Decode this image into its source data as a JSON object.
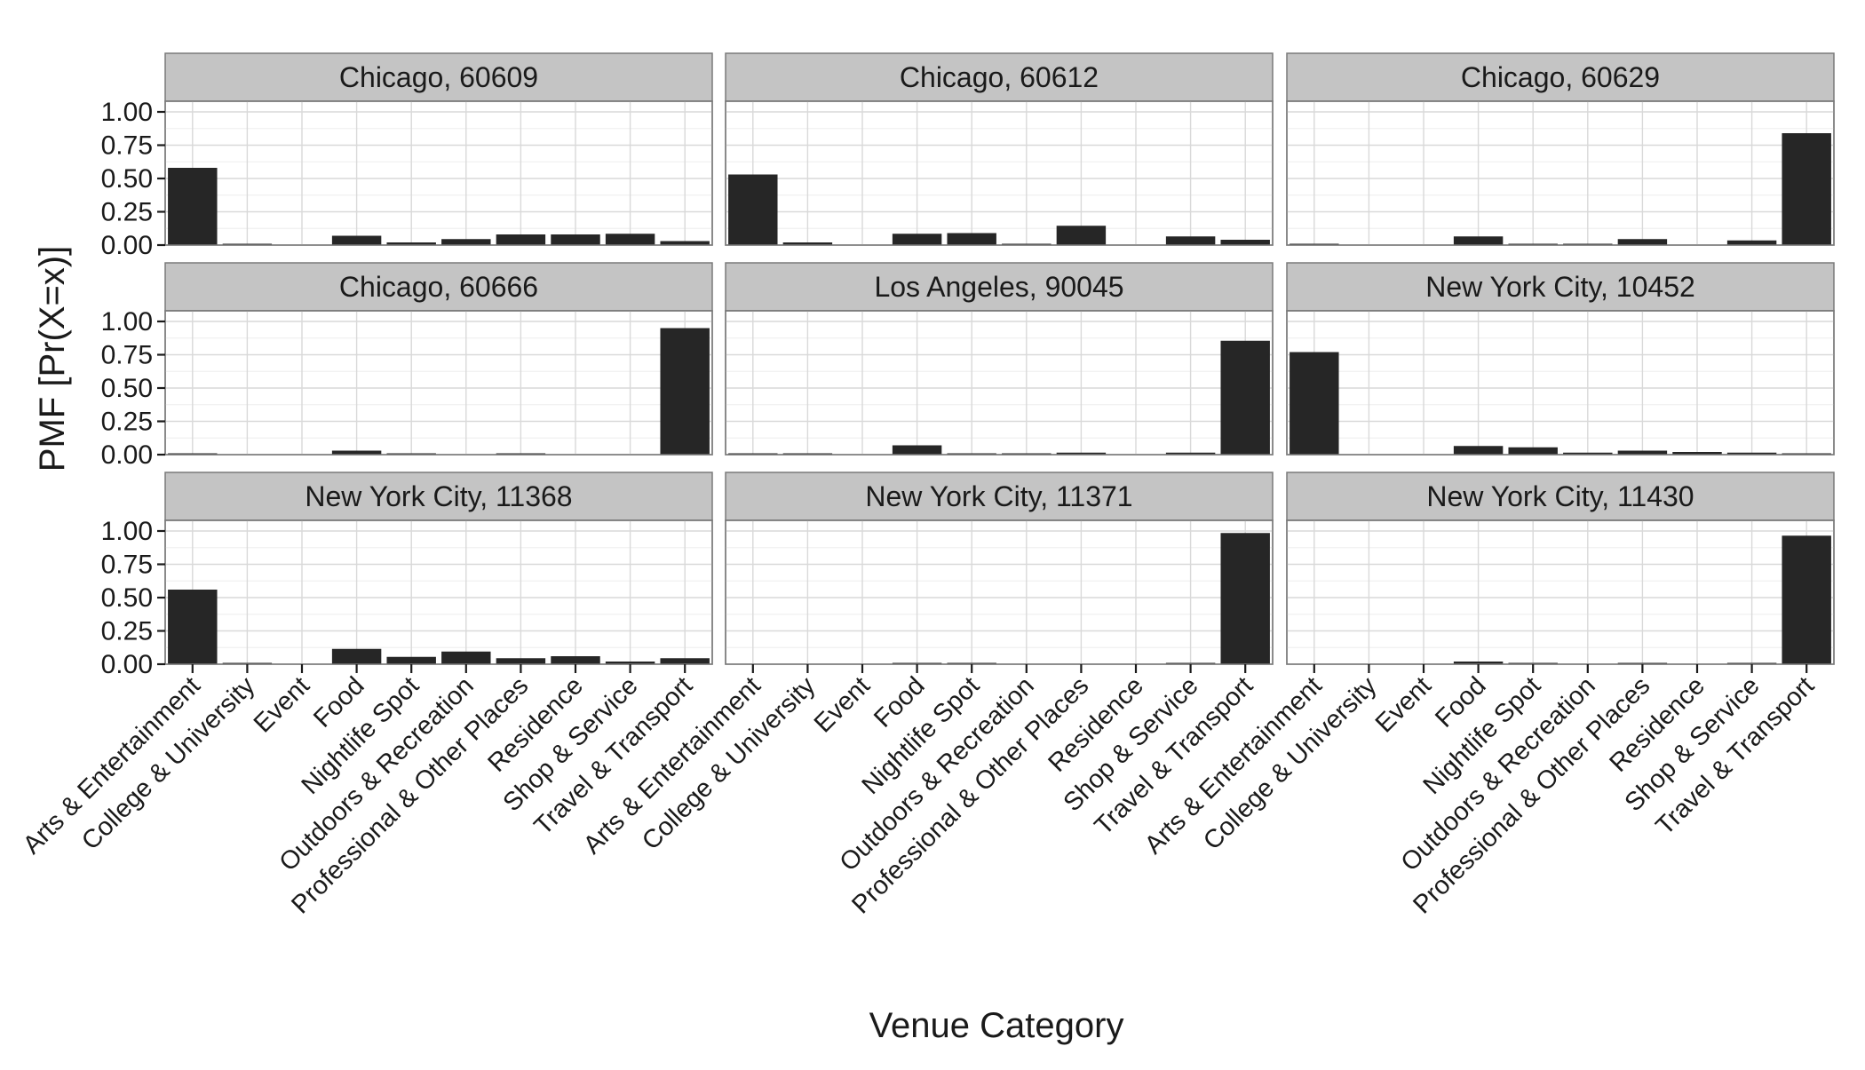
{
  "chart_data": {
    "type": "bar",
    "xlabel": "Venue Category",
    "ylabel": "PMF [Pr(X=x)]",
    "ylim": [
      0,
      1.08
    ],
    "yticks": [
      "0.00",
      "0.25",
      "0.50",
      "0.75",
      "1.00"
    ],
    "ytick_values": [
      0,
      0.25,
      0.5,
      0.75,
      1.0
    ],
    "grid": true,
    "bar_color": "#262626",
    "strip_color": "#c4c4c4",
    "categories": [
      "Arts & Entertainment",
      "College & University",
      "Event",
      "Food",
      "Nightlife Spot",
      "Outdoors & Recreation",
      "Professional & Other Places",
      "Residence",
      "Shop & Service",
      "Travel & Transport"
    ],
    "panels": [
      {
        "title": "Chicago, 60609",
        "values": [
          0.58,
          0.005,
          0.0,
          0.07,
          0.02,
          0.045,
          0.08,
          0.08,
          0.085,
          0.03
        ]
      },
      {
        "title": "Chicago, 60612",
        "values": [
          0.53,
          0.02,
          0.0,
          0.085,
          0.09,
          0.01,
          0.145,
          0.0,
          0.065,
          0.04
        ]
      },
      {
        "title": "Chicago, 60629",
        "values": [
          0.01,
          0.0,
          0.0,
          0.065,
          0.005,
          0.005,
          0.045,
          0.0,
          0.035,
          0.84
        ]
      },
      {
        "title": "Chicago, 60666",
        "values": [
          0.005,
          0.0,
          0.0,
          0.03,
          0.01,
          0.0,
          0.005,
          0.0,
          0.0,
          0.95
        ]
      },
      {
        "title": "Los Angeles, 90045",
        "values": [
          0.01,
          0.005,
          0.0,
          0.07,
          0.01,
          0.005,
          0.015,
          0.0,
          0.015,
          0.855
        ]
      },
      {
        "title": "New York City, 10452",
        "values": [
          0.77,
          0.0,
          0.0,
          0.065,
          0.055,
          0.015,
          0.03,
          0.02,
          0.015,
          0.01
        ]
      },
      {
        "title": "New York City, 11368",
        "values": [
          0.56,
          0.005,
          0.0,
          0.115,
          0.055,
          0.095,
          0.045,
          0.06,
          0.02,
          0.045
        ]
      },
      {
        "title": "New York City, 11371",
        "values": [
          0.0,
          0.0,
          0.0,
          0.01,
          0.005,
          0.0,
          0.0,
          0.0,
          0.005,
          0.985
        ]
      },
      {
        "title": "New York City, 11430",
        "values": [
          0.0,
          0.0,
          0.0,
          0.02,
          0.005,
          0.0,
          0.005,
          0.0,
          0.005,
          0.965
        ]
      }
    ]
  }
}
